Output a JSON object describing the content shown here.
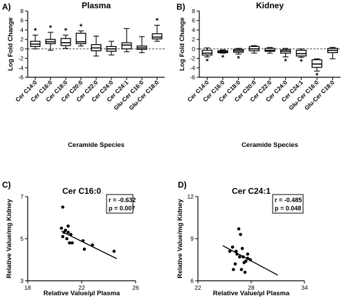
{
  "panels": [
    {
      "letter": "A)",
      "chart_data": {
        "type": "box",
        "title": "Plasma",
        "xlabel": "Ceramide Species",
        "ylabel": "Log Fold Change",
        "ylim": [
          -6,
          8
        ],
        "yticks": [
          -6,
          -4,
          -2,
          0,
          2,
          4,
          6,
          8
        ],
        "reference_line": 0,
        "categories": [
          "Cer C14:0",
          "Cer C16:0",
          "Cer C18:0",
          "Cer C20:0",
          "Cer C22:0",
          "Cer C24:0",
          "Cer C24:1",
          "Glu-Cer C16:0",
          "Glu-Cer C18:0"
        ],
        "boxes": [
          {
            "min": 0.0,
            "q1": 0.5,
            "median": 1.0,
            "q3": 1.6,
            "max": 2.9
          },
          {
            "min": -0.3,
            "q1": 1.1,
            "median": 1.5,
            "q3": 2.0,
            "max": 3.5
          },
          {
            "min": 0.1,
            "q1": 0.7,
            "median": 1.3,
            "q3": 2.2,
            "max": 2.9
          },
          {
            "min": 0.6,
            "q1": 1.1,
            "median": 1.5,
            "q3": 3.3,
            "max": 3.8
          },
          {
            "min": -1.5,
            "q1": -0.4,
            "median": 0.2,
            "q3": 0.9,
            "max": 2.7
          },
          {
            "min": -1.3,
            "q1": -0.5,
            "median": 0.0,
            "q3": 0.5,
            "max": 1.6
          },
          {
            "min": -0.6,
            "q1": 0.0,
            "median": 0.8,
            "q3": 1.3,
            "max": 4.3
          },
          {
            "min": -0.8,
            "q1": -0.1,
            "median": 0.2,
            "q3": 0.6,
            "max": 2.6
          },
          {
            "min": 1.6,
            "q1": 2.1,
            "median": 2.5,
            "q3": 3.2,
            "max": 5.0
          }
        ],
        "significance": [
          true,
          true,
          true,
          true,
          false,
          false,
          false,
          false,
          true
        ]
      }
    },
    {
      "letter": "B)",
      "chart_data": {
        "type": "box",
        "title": "Kidney",
        "xlabel": "Ceramide Species",
        "ylabel": "Log Fold Change",
        "ylim": [
          -6,
          8
        ],
        "yticks": [
          -6,
          -4,
          -2,
          0,
          2,
          4,
          6,
          8
        ],
        "reference_line": 0,
        "categories": [
          "Cer C14:0",
          "Cer C16:0",
          "Cer C18:0",
          "Cer C20:0",
          "Cer C22:0",
          "Cer C24:0",
          "Cer C24:1",
          "Glu-Cer C16:0",
          "Glu-Cer C18:0"
        ],
        "boxes": [
          {
            "min": -1.7,
            "q1": -1.3,
            "median": -0.9,
            "q3": -0.3,
            "max": 0.2
          },
          {
            "min": -0.9,
            "q1": -0.8,
            "median": -0.6,
            "q3": -0.4,
            "max": -0.2
          },
          {
            "min": -1.1,
            "q1": -0.7,
            "median": -0.4,
            "q3": -0.1,
            "max": 0.1
          },
          {
            "min": -0.9,
            "q1": -0.4,
            "median": 0.0,
            "q3": 0.5,
            "max": 0.7
          },
          {
            "min": -0.9,
            "q1": -0.5,
            "median": -0.3,
            "q3": 0.1,
            "max": 0.3
          },
          {
            "min": -1.7,
            "q1": -0.9,
            "median": -0.5,
            "q3": -0.2,
            "max": 0.1
          },
          {
            "min": -1.8,
            "q1": -1.5,
            "median": -1.0,
            "q3": -0.3,
            "max": 0.0
          },
          {
            "min": -4.7,
            "q1": -3.9,
            "median": -3.2,
            "q3": -2.3,
            "max": -2.1
          },
          {
            "min": -2.1,
            "q1": -0.8,
            "median": -0.3,
            "q3": 0.1,
            "max": 0.3
          }
        ],
        "significance": [
          true,
          true,
          true,
          false,
          false,
          true,
          true,
          true,
          false
        ]
      }
    },
    {
      "letter": "C)",
      "chart_data": {
        "type": "scatter",
        "title": "Cer C16:0",
        "xlabel": "Relative Value/µl Plasma",
        "ylabel": "Relative Value/mg Kidney",
        "xlim": [
          18,
          26
        ],
        "ylim": [
          3,
          7
        ],
        "xticks": [
          18,
          22,
          26
        ],
        "yticks": [
          3,
          5,
          7
        ],
        "x": [
          20.6,
          20.5,
          20.7,
          20.8,
          20.6,
          20.9,
          21.0,
          21.1,
          21.2,
          21.3,
          21.0,
          22.1,
          22.2,
          22.8,
          24.4
        ],
        "y": [
          6.5,
          5.5,
          5.3,
          5.4,
          5.1,
          5.0,
          5.6,
          4.8,
          5.2,
          4.8,
          5.3,
          4.9,
          4.5,
          4.7,
          4.4
        ],
        "trendline": {
          "x": [
            20.5,
            24.6
          ],
          "y": [
            5.35,
            4.05
          ]
        },
        "stats": {
          "r": "r = -0.632",
          "p": "p = 0.007"
        }
      }
    },
    {
      "letter": "D)",
      "chart_data": {
        "type": "scatter",
        "title": "Cer C24:1",
        "xlabel": "Relative Value/µl Plasma",
        "ylabel": "Relative Value/mg Kidney",
        "xlim": [
          22,
          34
        ],
        "ylim": [
          6,
          12
        ],
        "xticks": [
          22,
          28,
          34
        ],
        "yticks": [
          6,
          9,
          12
        ],
        "x": [
          26.6,
          26.8,
          25.9,
          25.6,
          26.3,
          27.0,
          26.4,
          26.7,
          27.1,
          27.6,
          27.9,
          27.4,
          26.2,
          27.2,
          26.0,
          26.9,
          27.3,
          27.6
        ],
        "y": [
          9.7,
          9.3,
          8.4,
          8.1,
          8.1,
          8.3,
          7.9,
          7.7,
          7.7,
          7.6,
          7.5,
          7.4,
          7.2,
          7.3,
          6.8,
          6.8,
          6.6,
          7.9
        ],
        "trendline": {
          "x": [
            24.8,
            31.0
          ],
          "y": [
            8.5,
            6.4
          ]
        },
        "stats": {
          "r": "r = -0.485",
          "p": "p = 0.048"
        }
      }
    }
  ]
}
